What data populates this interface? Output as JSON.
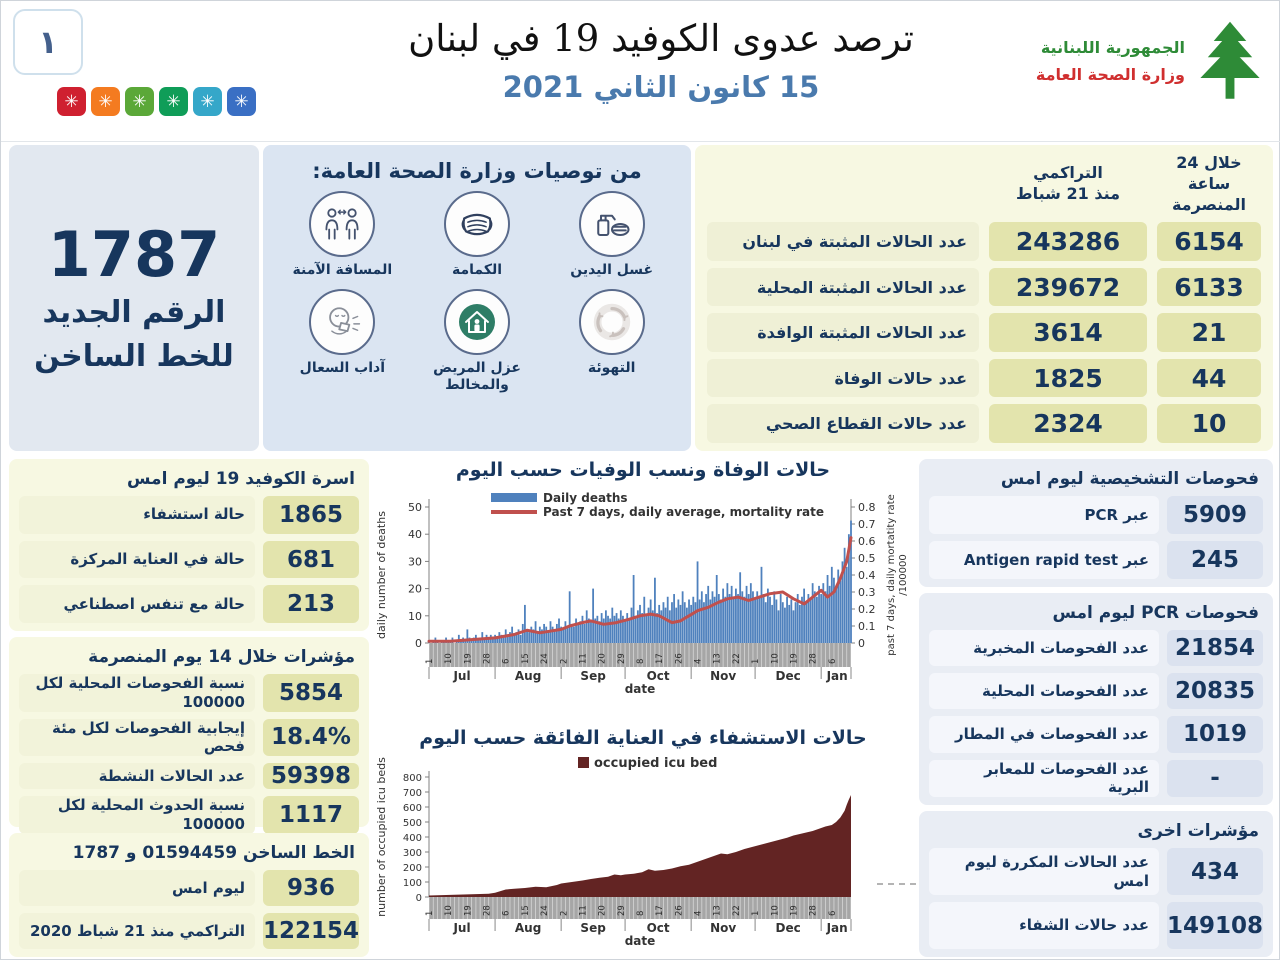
{
  "header": {
    "page_marker": "١",
    "virus_colors": [
      "#cf2030",
      "#f47b20",
      "#5ba838",
      "#0f9d58",
      "#35a7c9",
      "#3a6fc4"
    ],
    "title": "ترصد عدوى الكوفيد 19 في لبنان",
    "date": "15 كانون الثاني 2021",
    "ministry_line1": "الجمهورية اللبنانية",
    "ministry_line2": "وزارة الصحة العامة"
  },
  "colors": {
    "navy": "#17365d",
    "date_blue": "#4a7aad",
    "panel_blue": "#dbe5f2",
    "panel_yellow": "#f7f8e2",
    "cell_khaki": "#e3e4ad",
    "panel_gray_blue": "#e9edf4"
  },
  "hotline_banner": {
    "number": "1787",
    "line1": "الرقم الجديد",
    "line2": "للخط الساخن"
  },
  "recommendations": {
    "title": "من توصيات وزارة الصحة العامة:",
    "items": [
      {
        "icon": "hand-wash",
        "label": "غسل اليدين"
      },
      {
        "icon": "mask",
        "label": "الكمامة"
      },
      {
        "icon": "safe-distance",
        "label": "المسافة الآمنة"
      },
      {
        "icon": "ventilation",
        "label": "التهوئة"
      },
      {
        "icon": "isolation",
        "label": "عزل المريض والمخالط"
      },
      {
        "icon": "cough-etiquette",
        "label": "آداب السعال"
      }
    ]
  },
  "summary_table": {
    "col_24h": "خلال 24 ساعة\nالمنصرمة",
    "col_cum": "التراكمي\nمنذ 21 شباط",
    "rows": [
      {
        "label": "عدد الحالات المثبتة في لبنان",
        "cum": "243286",
        "h24": "6154"
      },
      {
        "label": "عدد الحالات المثبتة المحلية",
        "cum": "239672",
        "h24": "6133"
      },
      {
        "label": "عدد الحالات المثبتة الوافدة",
        "cum": "3614",
        "h24": "21"
      },
      {
        "label": "عدد حالات الوفاة",
        "cum": "1825",
        "h24": "44"
      },
      {
        "label": "عدد حالات القطاع الصحي",
        "cum": "2324",
        "h24": "10"
      }
    ]
  },
  "beds": {
    "title": "اسرة الكوفيد 19 ليوم امس",
    "rows": [
      {
        "value": "1865",
        "label": "حالة استشفاء"
      },
      {
        "value": "681",
        "label": "حالة في العناية المركزة"
      },
      {
        "value": "213",
        "label": "حالة مع تنفس اصطناعي"
      }
    ]
  },
  "indicators14": {
    "title": "مؤشرات خلال 14 يوم المنصرمة",
    "rows": [
      {
        "value": "5854",
        "label": "نسبة الفحوصات المحلية لكل 100000"
      },
      {
        "value": "18.4%",
        "label": "إيجابية الفحوصات لكل مئة فحص"
      },
      {
        "value": "59398",
        "label": "عدد الحالات النشطة"
      },
      {
        "value": "1117",
        "label": "نسبة الحدوث المحلية لكل 100000"
      }
    ]
  },
  "hotline_stats": {
    "title": "الخط الساخن 01594459 و 1787",
    "rows": [
      {
        "value": "936",
        "label": "ليوم امس"
      },
      {
        "value": "122154",
        "label": "التراكمي منذ 21 شباط 2020"
      }
    ]
  },
  "tests_yesterday": {
    "title": "فحوصات التشخيصية ليوم امس",
    "rows": [
      {
        "value": "5909",
        "label": "عبر PCR"
      },
      {
        "value": "245",
        "label": "عبر Antigen rapid test"
      }
    ]
  },
  "pcr_tests": {
    "title": "فحوصات PCR ليوم امس",
    "rows": [
      {
        "value": "21854",
        "label": "عدد الفحوصات المخبرية"
      },
      {
        "value": "20835",
        "label": "عدد الفحوصات المحلية"
      },
      {
        "value": "1019",
        "label": "عدد الفحوصات في المطار"
      },
      {
        "value": "-",
        "label": "عدد الفحوصات للمعابر البرية"
      }
    ]
  },
  "other_indicators": {
    "title": "مؤشرات اخرى",
    "rows": [
      {
        "value": "434",
        "label": "عدد الحالات المكررة ليوم امس"
      },
      {
        "value": "149108",
        "label": "عدد حالات الشفاء"
      }
    ]
  },
  "chart_data": [
    {
      "type": "bar+line",
      "title": "حالات الوفاة ونسب الوفيات حسب اليوم",
      "legend": [
        "Daily deaths",
        "Past 7 days, daily average, mortality rate"
      ],
      "ylabel_left": "daily number of deaths",
      "ylabel_right_line1": "past 7 days, daily mortatity rate",
      "ylabel_right_line2": "/100000",
      "xlabel": "date",
      "ylim_left": [
        0,
        50
      ],
      "yticks_left": [
        0,
        10,
        20,
        30,
        40,
        50
      ],
      "ylim_right": [
        0,
        0.8
      ],
      "yticks_right": [
        0,
        0.1,
        0.2,
        0.3,
        0.4,
        0.5,
        0.6,
        0.7,
        0.8
      ],
      "bar_color": "#4f81bd",
      "line_color": "#c0504d",
      "months": [
        "Jul",
        "Aug",
        "Sep",
        "Oct",
        "Nov",
        "Dec",
        "Jan"
      ],
      "month_starts": [
        0,
        31,
        62,
        92,
        123,
        153,
        184
      ],
      "total_days": 199,
      "day_tick_pos": [
        0,
        9,
        18,
        27,
        36,
        45,
        54,
        63,
        72,
        81,
        90,
        99,
        108,
        117,
        126,
        135,
        144,
        153,
        162,
        171,
        180,
        189
      ],
      "day_tick_labels": [
        "1",
        "10",
        "19",
        "28",
        "6",
        "15",
        "24",
        "2",
        "11",
        "20",
        "29",
        "8",
        "17",
        "26",
        "4",
        "13",
        "22",
        "1",
        "10",
        "19",
        "28",
        "6"
      ],
      "bars": [
        1,
        0,
        1,
        2,
        1,
        0,
        1,
        1,
        2,
        1,
        1,
        2,
        0,
        1,
        3,
        1,
        2,
        1,
        5,
        2,
        1,
        2,
        3,
        1,
        2,
        4,
        2,
        3,
        2,
        3,
        2,
        3,
        2,
        4,
        3,
        2,
        5,
        3,
        4,
        6,
        3,
        4,
        5,
        3,
        7,
        14,
        5,
        4,
        6,
        5,
        8,
        4,
        6,
        5,
        7,
        6,
        4,
        8,
        6,
        5,
        7,
        9,
        6,
        5,
        8,
        6,
        19,
        7,
        6,
        9,
        7,
        8,
        10,
        7,
        12,
        9,
        8,
        20,
        9,
        10,
        8,
        11,
        9,
        12,
        10,
        9,
        13,
        10,
        11,
        9,
        12,
        10,
        8,
        11,
        9,
        13,
        25,
        10,
        12,
        14,
        11,
        17,
        10,
        13,
        16,
        12,
        24,
        11,
        14,
        12,
        15,
        13,
        17,
        12,
        15,
        18,
        13,
        16,
        14,
        19,
        15,
        13,
        16,
        14,
        17,
        15,
        30,
        16,
        19,
        15,
        18,
        21,
        16,
        19,
        17,
        25,
        18,
        16,
        20,
        17,
        22,
        18,
        21,
        17,
        20,
        18,
        26,
        19,
        17,
        21,
        18,
        22,
        19,
        16,
        19,
        17,
        28,
        18,
        15,
        20,
        17,
        14,
        19,
        16,
        12,
        18,
        15,
        13,
        17,
        14,
        16,
        12,
        15,
        18,
        14,
        17,
        20,
        15,
        18,
        16,
        22,
        19,
        17,
        21,
        18,
        22,
        19,
        25,
        21,
        28,
        24,
        20,
        27,
        23,
        30,
        35,
        28,
        40,
        45
      ],
      "line_points": [
        [
          0,
          0.01
        ],
        [
          10,
          0.01
        ],
        [
          20,
          0.02
        ],
        [
          31,
          0.03
        ],
        [
          40,
          0.05
        ],
        [
          46,
          0.075
        ],
        [
          52,
          0.06
        ],
        [
          62,
          0.08
        ],
        [
          66,
          0.1
        ],
        [
          72,
          0.12
        ],
        [
          76,
          0.13
        ],
        [
          82,
          0.11
        ],
        [
          88,
          0.12
        ],
        [
          94,
          0.14
        ],
        [
          99,
          0.16
        ],
        [
          104,
          0.17
        ],
        [
          108,
          0.16
        ],
        [
          114,
          0.12
        ],
        [
          118,
          0.13
        ],
        [
          122,
          0.16
        ],
        [
          126,
          0.19
        ],
        [
          131,
          0.21
        ],
        [
          136,
          0.24
        ],
        [
          140,
          0.26
        ],
        [
          145,
          0.27
        ],
        [
          150,
          0.25
        ],
        [
          155,
          0.27
        ],
        [
          160,
          0.29
        ],
        [
          166,
          0.3
        ],
        [
          171,
          0.26
        ],
        [
          176,
          0.23
        ],
        [
          181,
          0.28
        ],
        [
          184,
          0.31
        ],
        [
          187,
          0.27
        ],
        [
          190,
          0.3
        ],
        [
          193,
          0.38
        ],
        [
          196,
          0.48
        ],
        [
          198,
          0.62
        ]
      ]
    },
    {
      "type": "area",
      "title": "حالات الاستشفاء في العناية الفائقة حسب اليوم",
      "legend": [
        "occupied icu bed"
      ],
      "ylabel": "number of occupied icu beds",
      "xlabel": "date",
      "ylim": [
        0,
        800
      ],
      "yticks": [
        0,
        100,
        200,
        300,
        400,
        500,
        600,
        700,
        800
      ],
      "area_color": "#632423",
      "months": [
        "Jul",
        "Aug",
        "Sep",
        "Oct",
        "Nov",
        "Dec",
        "Jan"
      ],
      "month_starts": [
        0,
        31,
        62,
        92,
        123,
        153,
        184
      ],
      "total_days": 199,
      "day_tick_pos": [
        0,
        9,
        18,
        27,
        36,
        45,
        54,
        63,
        72,
        81,
        90,
        99,
        108,
        117,
        126,
        135,
        144,
        153,
        162,
        171,
        180,
        189
      ],
      "day_tick_labels": [
        "1",
        "10",
        "19",
        "28",
        "6",
        "15",
        "24",
        "2",
        "11",
        "20",
        "29",
        "8",
        "17",
        "26",
        "4",
        "13",
        "22",
        "1",
        "10",
        "19",
        "28",
        "6"
      ],
      "points": [
        [
          0,
          10
        ],
        [
          10,
          14
        ],
        [
          20,
          18
        ],
        [
          28,
          22
        ],
        [
          31,
          28
        ],
        [
          36,
          50
        ],
        [
          40,
          55
        ],
        [
          45,
          60
        ],
        [
          50,
          68
        ],
        [
          55,
          65
        ],
        [
          60,
          80
        ],
        [
          62,
          90
        ],
        [
          67,
          100
        ],
        [
          72,
          110
        ],
        [
          76,
          120
        ],
        [
          80,
          128
        ],
        [
          84,
          135
        ],
        [
          87,
          150
        ],
        [
          90,
          145
        ],
        [
          92,
          150
        ],
        [
          96,
          155
        ],
        [
          100,
          165
        ],
        [
          103,
          185
        ],
        [
          106,
          175
        ],
        [
          110,
          180
        ],
        [
          114,
          190
        ],
        [
          118,
          205
        ],
        [
          122,
          215
        ],
        [
          126,
          235
        ],
        [
          130,
          255
        ],
        [
          134,
          275
        ],
        [
          137,
          290
        ],
        [
          140,
          285
        ],
        [
          144,
          300
        ],
        [
          148,
          320
        ],
        [
          152,
          335
        ],
        [
          156,
          350
        ],
        [
          160,
          365
        ],
        [
          164,
          380
        ],
        [
          168,
          395
        ],
        [
          171,
          410
        ],
        [
          174,
          420
        ],
        [
          177,
          430
        ],
        [
          180,
          440
        ],
        [
          183,
          455
        ],
        [
          186,
          470
        ],
        [
          189,
          480
        ],
        [
          191,
          500
        ],
        [
          193,
          530
        ],
        [
          195,
          575
        ],
        [
          196,
          615
        ],
        [
          197,
          650
        ],
        [
          198,
          680
        ]
      ]
    }
  ]
}
